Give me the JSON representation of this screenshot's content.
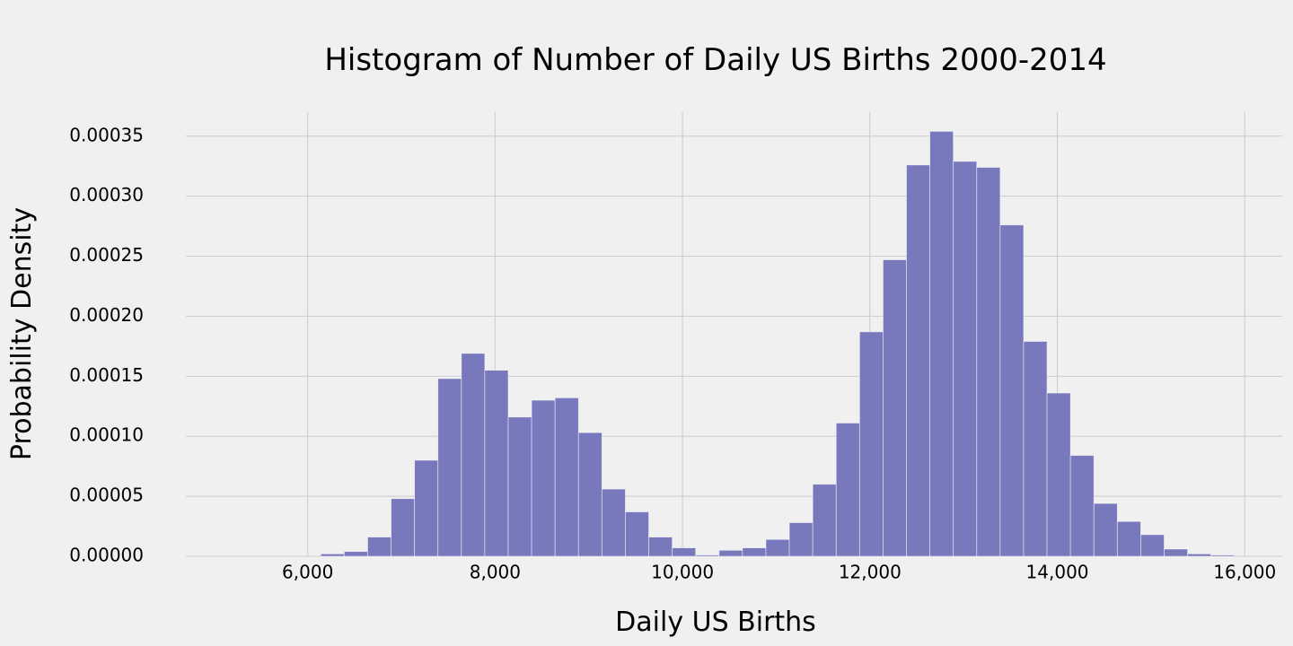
{
  "chart_data": {
    "type": "bar",
    "title": "Histogram of Number of Daily US Births 2000-2014",
    "xlabel": "Daily US Births",
    "ylabel": "Probability Density",
    "xlim": [
      4700,
      16400
    ],
    "ylim": [
      0,
      0.00037
    ],
    "grid": true,
    "x_ticks": [
      6000,
      8000,
      10000,
      12000,
      14000,
      16000
    ],
    "x_tick_labels": [
      "6,000",
      "8,000",
      "10,000",
      "12,000",
      "14,000",
      "16,000"
    ],
    "y_ticks": [
      0,
      5e-05,
      0.0001,
      0.00015,
      0.0002,
      0.00025,
      0.0003,
      0.00035
    ],
    "y_tick_labels": [
      "0.00000",
      "0.00005",
      "0.00010",
      "0.00015",
      "0.00020",
      "0.00025",
      "0.00030",
      "0.00035"
    ],
    "bin_edges": [
      6140,
      6390,
      6640,
      6890,
      7140,
      7390,
      7640,
      7890,
      8140,
      8390,
      8640,
      8890,
      9140,
      9390,
      9640,
      9890,
      10140,
      10390,
      10640,
      10890,
      11140,
      11390,
      11640,
      11890,
      12140,
      12390,
      12640,
      12890,
      13140,
      13390,
      13640,
      13890,
      14140,
      14390,
      14640,
      14890,
      15140,
      15390,
      15640,
      15890
    ],
    "values": [
      2e-06,
      4e-06,
      1.6e-05,
      4.8e-05,
      8e-05,
      0.000148,
      0.000169,
      0.000155,
      0.000116,
      0.00013,
      0.000132,
      0.000103,
      5.6e-05,
      3.7e-05,
      1.6e-05,
      7e-06,
      1e-06,
      5e-06,
      7e-06,
      1.4e-05,
      2.8e-05,
      6e-05,
      0.000111,
      0.000187,
      0.000247,
      0.000326,
      0.000354,
      0.000329,
      0.000324,
      0.000276,
      0.000179,
      0.000136,
      8.4e-05,
      4.4e-05,
      2.9e-05,
      1.8e-05,
      6e-06,
      2e-06,
      1e-06
    ],
    "colors": {
      "bar": "#7878bc",
      "bar_edge": "#ffffff",
      "grid": "#cbcbcb",
      "background": "#f0f0f0"
    }
  }
}
